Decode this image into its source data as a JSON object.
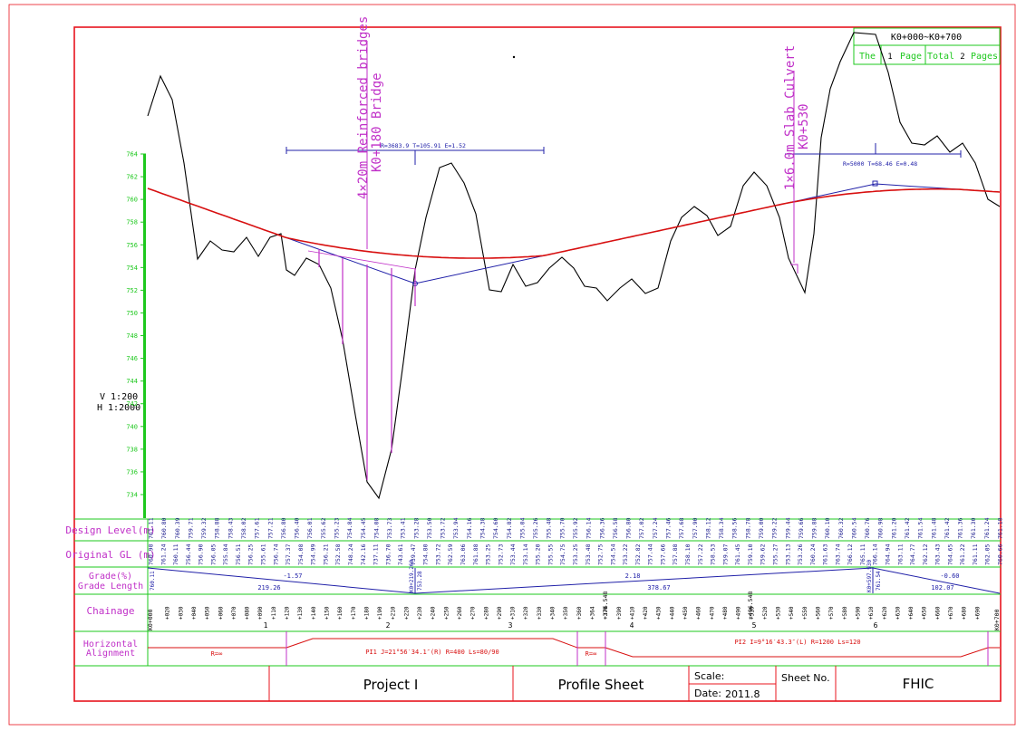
{
  "sheet": {
    "range_label": "K0+000~K0+700",
    "page_prefix": "The",
    "page_no": "1",
    "page_word": "Page",
    "total_prefix": "Total",
    "total_pages": "2",
    "pages_word": "Pages",
    "scale_v": "V 1:200",
    "scale_h": "H 1:2000"
  },
  "structures": [
    {
      "line1": "4×20m Reinforced bridges",
      "line2": "K0+180 Bridge"
    },
    {
      "line1": "1×6.0m Slab Culvert",
      "line2": "K0+530"
    }
  ],
  "vertical_curves": [
    {
      "label": "R=3683.9  T=105.91  E=1.52"
    },
    {
      "label": "R=5000  T=68.46  E=0.48"
    }
  ],
  "elevation_axis": {
    "labels": [
      "764",
      "762",
      "760",
      "758",
      "756",
      "754",
      "752",
      "750",
      "748",
      "746",
      "744",
      "742",
      "740",
      "738",
      "736",
      "734"
    ]
  },
  "grade": {
    "segments": [
      {
        "grade": "-1.57",
        "length": "219.26"
      },
      {
        "grade": "2.18",
        "length": "378.67"
      },
      {
        "grade": "-0.60",
        "length": "102.07"
      }
    ],
    "pvi_labels": [
      "760.11",
      "K0+219.260",
      "753.28",
      "K0+597.930",
      "761.54"
    ]
  },
  "chainage": {
    "start": "K0+000",
    "end": "K0+700",
    "km_marks": [
      "1",
      "2",
      "3",
      "4",
      "5",
      "6"
    ],
    "special": [
      "+376.548",
      "+496.548"
    ],
    "tick_labels": [
      "+020",
      "+030",
      "+040",
      "+050",
      "+060",
      "+070",
      "+080",
      "+090",
      "+110",
      "+120",
      "+130",
      "+140",
      "+150",
      "+160",
      "+170",
      "+180",
      "+190",
      "+210",
      "+220",
      "+230",
      "+240",
      "+250",
      "+260",
      "+270",
      "+280",
      "+290",
      "+310",
      "+320",
      "+330",
      "+340",
      "+350",
      "+360",
      "+364",
      "+370",
      "+390",
      "+410",
      "+420",
      "+430",
      "+440",
      "+450",
      "+460",
      "+470",
      "+480",
      "+490",
      "+510",
      "+520",
      "+530",
      "+540",
      "+550",
      "+560",
      "+570",
      "+580",
      "+590",
      "+610",
      "+620",
      "+630",
      "+640",
      "+650",
      "+660",
      "+670",
      "+680",
      "+690"
    ]
  },
  "alignment": {
    "items": [
      {
        "label": "R=∞"
      },
      {
        "label": "PI1  J=21°56′34.1″(R)  R=400  Ls=80/90"
      },
      {
        "label": "R=∞"
      },
      {
        "label": "PI2  I=9°16′43.3″(L)  R=1200  Ls=120"
      }
    ]
  },
  "band_labels": {
    "design": "Design Level(m)",
    "original": "Original GL (m)",
    "grade_line1": "Grade(%)",
    "grade_line2": "Grade Length",
    "chainage": "Chainage",
    "horizontal_line1": "Horizontal",
    "horizontal_line2": "Alignment"
  },
  "design_levels": [
    "761.11",
    "760.80",
    "760.39",
    "759.71",
    "759.32",
    "758.88",
    "758.43",
    "758.02",
    "757.61",
    "757.21",
    "756.80",
    "756.40",
    "756.01",
    "755.62",
    "755.23",
    "754.84",
    "754.45",
    "754.08",
    "753.73",
    "753.41",
    "753.28",
    "753.50",
    "753.72",
    "753.94",
    "754.16",
    "754.38",
    "754.60",
    "754.82",
    "755.04",
    "755.26",
    "755.48",
    "755.70",
    "755.92",
    "756.14",
    "756.36",
    "756.58",
    "756.80",
    "757.02",
    "757.24",
    "757.46",
    "757.68",
    "757.90",
    "758.12",
    "758.34",
    "758.56",
    "758.78",
    "759.00",
    "759.22",
    "759.44",
    "759.66",
    "759.88",
    "760.10",
    "760.32",
    "760.54",
    "760.76",
    "760.98",
    "761.20",
    "761.42",
    "761.54",
    "761.48",
    "761.42",
    "761.36",
    "761.30",
    "761.24",
    "761.18"
  ],
  "original_levels": [
    "760.98",
    "761.24",
    "760.11",
    "756.44",
    "756.90",
    "756.05",
    "755.84",
    "756.51",
    "756.25",
    "755.61",
    "756.74",
    "757.37",
    "754.08",
    "754.99",
    "756.21",
    "752.58",
    "748.24",
    "742.16",
    "737.11",
    "736.70",
    "743.61",
    "739.47",
    "754.80",
    "753.72",
    "762.59",
    "763.06",
    "761.88",
    "753.25",
    "752.73",
    "753.44",
    "753.14",
    "755.20",
    "755.55",
    "754.75",
    "753.25",
    "753.48",
    "752.75",
    "754.54",
    "753.22",
    "752.82",
    "757.44",
    "757.66",
    "757.88",
    "758.10",
    "757.22",
    "758.53",
    "759.07",
    "761.45",
    "759.10",
    "759.62",
    "755.27",
    "753.13",
    "753.26",
    "760.24",
    "761.63",
    "763.74",
    "766.12",
    "765.11",
    "766.14",
    "764.94",
    "763.11",
    "764.77",
    "762.12",
    "763.43",
    "764.65",
    "761.22",
    "761.11",
    "762.05",
    "760.66"
  ],
  "title_block": {
    "project": "Project I",
    "sheet_title": "Profile Sheet",
    "scale_label": "Scale:",
    "date_label": "Date:",
    "date_value": "2011.8",
    "sheet_no_label": "Sheet No.",
    "company": "FHIC"
  },
  "colors": {
    "frame": "#e8141e",
    "ground": "#000000",
    "design": "#d81010",
    "grade": "#2020a8",
    "magenta": "#c030c8",
    "green": "#1ec81e",
    "navy": "#202090"
  }
}
